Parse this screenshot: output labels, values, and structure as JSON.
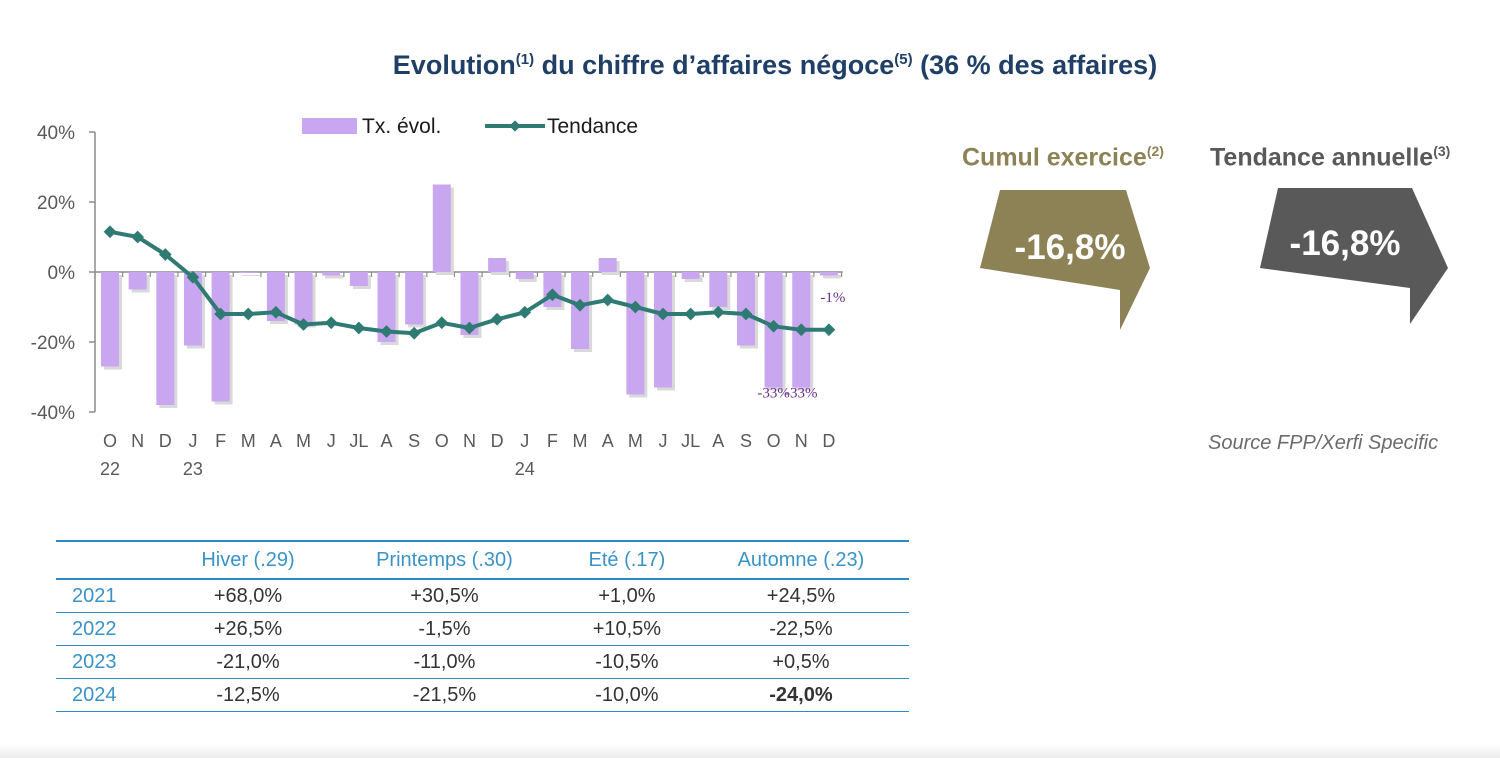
{
  "title": {
    "part1": "Evolution",
    "sup1": "(1)",
    "part2": " du chiffre d’affaires négoce",
    "sup2": "(5)",
    "part3": " (36 % des affaires)"
  },
  "colors": {
    "bar": "#c9a7f0",
    "line": "#2f7b74",
    "cumul": "#8d8255",
    "tendance": "#595959",
    "table_accent": "#2e8bc7"
  },
  "chart_data": {
    "type": "bar",
    "title": "Evolution du chiffre d’affaires négoce (36 % des affaires)",
    "xlabel": "",
    "ylabel": "",
    "ylim": [
      -40,
      40
    ],
    "yticks": [
      "40%",
      "20%",
      "0%",
      "-20%",
      "-40%"
    ],
    "yticks_values": [
      40,
      20,
      0,
      -20,
      -40
    ],
    "categories": [
      "O",
      "N",
      "D",
      "J",
      "F",
      "M",
      "A",
      "M",
      "J",
      "JL",
      "A",
      "S",
      "O",
      "N",
      "D",
      "J",
      "F",
      "M",
      "A",
      "M",
      "J",
      "JL",
      "A",
      "S",
      "O",
      "N",
      "D"
    ],
    "year_labels": [
      {
        "index": 0,
        "label": "22"
      },
      {
        "index": 3,
        "label": "23"
      },
      {
        "index": 15,
        "label": "24"
      }
    ],
    "legend": {
      "position": "top",
      "bar_label": "Tx. évol.",
      "line_label": "Tendance"
    },
    "series": [
      {
        "name": "Tx. évol.",
        "type": "bar",
        "values": [
          -27,
          -5,
          -38,
          -21,
          -37,
          0,
          -14,
          -15,
          -1,
          -4,
          -20,
          -15,
          25,
          -18,
          4,
          -2,
          -10,
          -22,
          4,
          -35,
          -33,
          -2,
          -10,
          -21,
          -33,
          -33,
          -1
        ]
      },
      {
        "name": "Tendance",
        "type": "line",
        "values": [
          11.5,
          10,
          5,
          -1.5,
          -12,
          -12,
          -11.5,
          -15,
          -14.5,
          -16,
          -17,
          -17.5,
          -14.5,
          -16,
          -13.5,
          -11.5,
          -6.5,
          -9.5,
          -8,
          -10,
          -12,
          -12,
          -11.5,
          -12,
          -15.5,
          -16.5,
          -16.5
        ]
      }
    ],
    "data_labels": [
      {
        "index": 24,
        "text": "-33%"
      },
      {
        "index": 25,
        "text": "-33%"
      },
      {
        "index": 26,
        "text": "-1%"
      }
    ]
  },
  "kpi": {
    "cumul_label": "Cumul exercice",
    "cumul_sup": "(2)",
    "cumul_value": "-16,8%",
    "tendance_label": "Tendance annuelle",
    "tendance_sup": "(3)",
    "tendance_value": "-16,8%"
  },
  "source": "Source FPP/Xerfi Specific",
  "table": {
    "headers": [
      "",
      "Hiver (.29)",
      "Printemps (.30)",
      "Eté (.17)",
      "Automne (.23)"
    ],
    "rows": [
      {
        "year": "2021",
        "values": [
          "+68,0%",
          "+30,5%",
          "+1,0%",
          "+24,5%"
        ]
      },
      {
        "year": "2022",
        "values": [
          "+26,5%",
          "-1,5%",
          "+10,5%",
          "-22,5%"
        ]
      },
      {
        "year": "2023",
        "values": [
          "-21,0%",
          "-11,0%",
          "-10,5%",
          "+0,5%"
        ]
      },
      {
        "year": "2024",
        "values": [
          "-12,5%",
          "-21,5%",
          "-10,0%",
          "-24,0%"
        ]
      }
    ]
  }
}
